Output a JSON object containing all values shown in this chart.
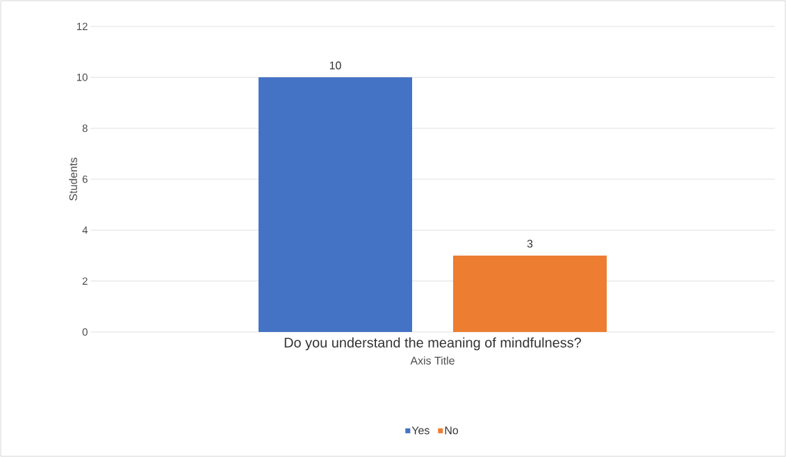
{
  "chart_data": {
    "type": "bar",
    "categories": [
      "Do you understand the meaning of mindfulness?"
    ],
    "series": [
      {
        "name": "Yes",
        "color": "#4472c4",
        "values": [
          10
        ]
      },
      {
        "name": "No",
        "color": "#ed7d31",
        "values": [
          3
        ]
      }
    ],
    "xlabel": "Axis Title",
    "ylabel": "Students",
    "ylim": [
      0,
      12
    ],
    "yticks": [
      0,
      2,
      4,
      6,
      8,
      10,
      12
    ],
    "grid": "y",
    "legend": "bottom",
    "data_labels": true
  }
}
